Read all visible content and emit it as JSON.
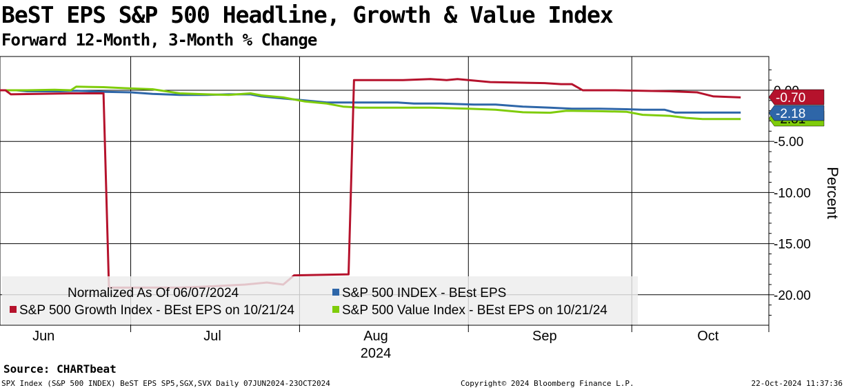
{
  "header": {
    "title": "BeST EPS S&P 500 Headline, Growth & Value Index",
    "subtitle": "Forward 12-Month, 3-Month % Change"
  },
  "chart_data": {
    "type": "line",
    "ylabel": "Percent",
    "ylim": [
      -23,
      2.5
    ],
    "yticks": [
      0,
      -5,
      -10,
      -15,
      -20
    ],
    "ytick_labels": [
      "0.00",
      "-5.00",
      "-10.00",
      "-15.00",
      "-20.00"
    ],
    "x_start": "2024-06-07",
    "x_end": "2024-10-23",
    "xticks": [
      {
        "date": "2024-06-15",
        "label": "Jun"
      },
      {
        "date": "2024-07-16",
        "label": "Jul"
      },
      {
        "date": "2024-08-15",
        "label": "Aug"
      },
      {
        "date": "2024-09-15",
        "label": "Sep"
      },
      {
        "date": "2024-10-15",
        "label": "Oct"
      }
    ],
    "year_label": "2024",
    "month_boundaries": [
      "2024-07-01",
      "2024-08-01",
      "2024-09-01",
      "2024-10-01"
    ],
    "grid": true,
    "legend": {
      "position": "bottom-left",
      "note": "Normalized As Of 06/07/2024"
    },
    "series": [
      {
        "name": "S&P 500 INDEX - BEst EPS",
        "color": "#2e66a8",
        "last_label": "-2.18",
        "points": [
          [
            "2024-06-07",
            0.0
          ],
          [
            "2024-06-10",
            0.0
          ],
          [
            "2024-06-12",
            -0.1
          ],
          [
            "2024-06-14",
            -0.1
          ],
          [
            "2024-06-18",
            -0.1
          ],
          [
            "2024-06-21",
            -0.05
          ],
          [
            "2024-06-26",
            -0.15
          ],
          [
            "2024-07-01",
            -0.2
          ],
          [
            "2024-07-05",
            -0.35
          ],
          [
            "2024-07-10",
            -0.45
          ],
          [
            "2024-07-15",
            -0.45
          ],
          [
            "2024-07-19",
            -0.4
          ],
          [
            "2024-07-23",
            -0.4
          ],
          [
            "2024-07-25",
            -0.6
          ],
          [
            "2024-07-29",
            -0.8
          ],
          [
            "2024-08-02",
            -1.0
          ],
          [
            "2024-08-06",
            -1.2
          ],
          [
            "2024-08-09",
            -1.2
          ],
          [
            "2024-08-14",
            -1.2
          ],
          [
            "2024-08-19",
            -1.2
          ],
          [
            "2024-08-22",
            -1.3
          ],
          [
            "2024-08-27",
            -1.3
          ],
          [
            "2024-09-02",
            -1.4
          ],
          [
            "2024-09-06",
            -1.4
          ],
          [
            "2024-09-11",
            -1.6
          ],
          [
            "2024-09-16",
            -1.7
          ],
          [
            "2024-09-20",
            -1.8
          ],
          [
            "2024-09-25",
            -1.8
          ],
          [
            "2024-09-30",
            -1.85
          ],
          [
            "2024-10-03",
            -1.9
          ],
          [
            "2024-10-07",
            -1.9
          ],
          [
            "2024-10-09",
            -2.18
          ],
          [
            "2024-10-21",
            -2.18
          ]
        ]
      },
      {
        "name": "S&P 500 Growth Index - BEst EPS on 10/21/24",
        "color": "#b5122c",
        "last_label": "-0.70",
        "points": [
          [
            "2024-06-07",
            0.0
          ],
          [
            "2024-06-08",
            0.0
          ],
          [
            "2024-06-09",
            -0.4
          ],
          [
            "2024-06-14",
            -0.35
          ],
          [
            "2024-06-20",
            -0.3
          ],
          [
            "2024-06-26",
            -0.3
          ],
          [
            "2024-06-27",
            -19.3
          ],
          [
            "2024-07-03",
            -19.3
          ],
          [
            "2024-07-10",
            -19.3
          ],
          [
            "2024-07-15",
            -19.2
          ],
          [
            "2024-07-22",
            -19.0
          ],
          [
            "2024-07-26",
            -18.8
          ],
          [
            "2024-07-29",
            -19.0
          ],
          [
            "2024-07-31",
            -18.1
          ],
          [
            "2024-08-10",
            -18.0
          ],
          [
            "2024-08-11",
            1.0
          ],
          [
            "2024-08-20",
            1.0
          ],
          [
            "2024-08-25",
            1.1
          ],
          [
            "2024-08-28",
            1.0
          ],
          [
            "2024-08-30",
            1.1
          ],
          [
            "2024-09-05",
            0.8
          ],
          [
            "2024-09-10",
            0.75
          ],
          [
            "2024-09-15",
            0.7
          ],
          [
            "2024-09-18",
            0.6
          ],
          [
            "2024-09-20",
            0.6
          ],
          [
            "2024-09-22",
            0.0
          ],
          [
            "2024-09-28",
            0.0
          ],
          [
            "2024-10-03",
            -0.05
          ],
          [
            "2024-10-08",
            -0.1
          ],
          [
            "2024-10-13",
            -0.2
          ],
          [
            "2024-10-16",
            -0.6
          ],
          [
            "2024-10-21",
            -0.7
          ]
        ]
      },
      {
        "name": "S&P 500 Value Index - BEst EPS on 10/21/24",
        "color": "#7fcc0a",
        "last_label": "-2.81",
        "points": [
          [
            "2024-06-07",
            0.0
          ],
          [
            "2024-06-12",
            0.0
          ],
          [
            "2024-06-17",
            0.05
          ],
          [
            "2024-06-20",
            0.0
          ],
          [
            "2024-06-21",
            0.35
          ],
          [
            "2024-06-26",
            0.3
          ],
          [
            "2024-06-30",
            0.2
          ],
          [
            "2024-07-05",
            0.1
          ],
          [
            "2024-07-10",
            -0.3
          ],
          [
            "2024-07-15",
            -0.4
          ],
          [
            "2024-07-19",
            -0.45
          ],
          [
            "2024-07-23",
            -0.3
          ],
          [
            "2024-07-25",
            -0.5
          ],
          [
            "2024-07-29",
            -0.7
          ],
          [
            "2024-08-02",
            -1.1
          ],
          [
            "2024-08-06",
            -1.3
          ],
          [
            "2024-08-09",
            -1.6
          ],
          [
            "2024-08-12",
            -1.7
          ],
          [
            "2024-08-18",
            -1.7
          ],
          [
            "2024-08-25",
            -1.7
          ],
          [
            "2024-09-01",
            -1.8
          ],
          [
            "2024-09-06",
            -1.9
          ],
          [
            "2024-09-11",
            -2.15
          ],
          [
            "2024-09-16",
            -2.2
          ],
          [
            "2024-09-19",
            -2.0
          ],
          [
            "2024-09-25",
            -2.05
          ],
          [
            "2024-09-30",
            -2.1
          ],
          [
            "2024-10-03",
            -2.4
          ],
          [
            "2024-10-08",
            -2.5
          ],
          [
            "2024-10-11",
            -2.7
          ],
          [
            "2024-10-14",
            -2.81
          ],
          [
            "2024-10-21",
            -2.81
          ]
        ]
      }
    ]
  },
  "footer": {
    "source": "Source: CHARTbeat",
    "left": "SPX Index (S&P 500 INDEX) BeST EPS SP5,SGX,SVX  Daily 07JUN2024-23OCT2024",
    "middle": "Copyright© 2024 Bloomberg Finance L.P.",
    "right": "22-Oct-2024 11:37:36"
  }
}
